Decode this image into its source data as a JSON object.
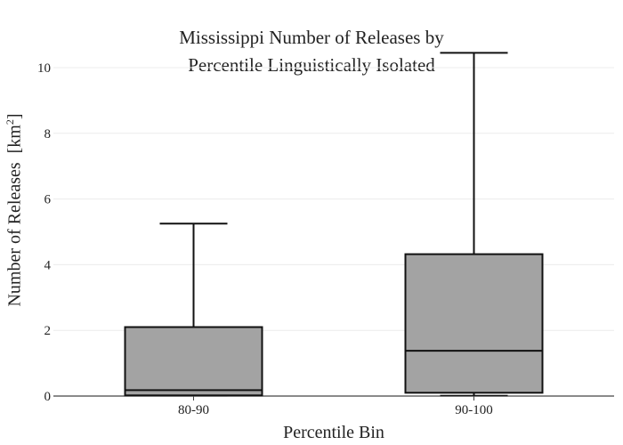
{
  "chart_data": {
    "type": "box",
    "title_lines": [
      "Mississippi Number of Releases by",
      "Percentile Linguistically Isolated"
    ],
    "xlabel": "Percentile Bin",
    "ylabel": "Number of Releases",
    "ylabel_unit_base": "[km",
    "ylabel_unit_sup": "2",
    "ylabel_unit_close": "]",
    "ylim": [
      0,
      10.5
    ],
    "yticks": [
      0,
      2,
      4,
      6,
      8,
      10
    ],
    "grid": true,
    "box_color": "#a3a3a3",
    "categories": [
      "80-90",
      "90-100"
    ],
    "boxes": [
      {
        "category": "80-90",
        "min": 0.0,
        "q1": 0.02,
        "median": 0.18,
        "q3": 2.1,
        "max": 5.25
      },
      {
        "category": "90-100",
        "min": 0.0,
        "q1": 0.1,
        "median": 1.38,
        "q3": 4.32,
        "max": 10.45
      }
    ]
  }
}
